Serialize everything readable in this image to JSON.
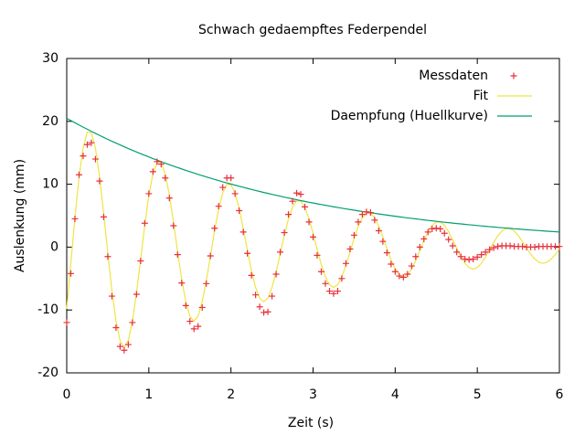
{
  "chart_data": {
    "type": "line",
    "title": "Schwach gedaempftes Federpendel",
    "xlabel": "Zeit (s)",
    "ylabel": "Auslenkung (mm)",
    "xlim": [
      0,
      6
    ],
    "ylim": [
      -20,
      30
    ],
    "xticks": [
      0,
      1,
      2,
      3,
      4,
      5,
      6
    ],
    "yticks": [
      -20,
      -10,
      0,
      10,
      20,
      30
    ],
    "legend": "top right",
    "x": [
      0,
      0.05,
      0.1,
      0.15,
      0.2,
      0.25,
      0.3,
      0.35,
      0.4,
      0.45,
      0.5,
      0.55,
      0.6,
      0.65,
      0.7,
      0.75,
      0.8,
      0.85,
      0.9,
      0.95,
      1,
      1.05,
      1.1,
      1.15,
      1.2,
      1.25,
      1.3,
      1.35,
      1.4,
      1.45,
      1.5,
      1.55,
      1.6,
      1.65,
      1.7,
      1.75,
      1.8,
      1.85,
      1.9,
      1.95,
      2,
      2.05,
      2.1,
      2.15,
      2.2,
      2.25,
      2.3,
      2.35,
      2.4,
      2.45,
      2.5,
      2.55,
      2.6,
      2.65,
      2.7,
      2.75,
      2.8,
      2.85,
      2.9,
      2.95,
      3,
      3.05,
      3.1,
      3.15,
      3.2,
      3.25,
      3.3,
      3.35,
      3.4,
      3.45,
      3.5,
      3.55,
      3.6,
      3.65,
      3.7,
      3.75,
      3.8,
      3.85,
      3.9,
      3.95,
      4,
      4.05,
      4.1,
      4.15,
      4.2,
      4.25,
      4.3,
      4.35,
      4.4,
      4.45,
      4.5,
      4.55,
      4.6,
      4.65,
      4.7,
      4.75,
      4.8,
      4.85,
      4.9,
      4.95,
      5,
      5.05,
      5.1,
      5.15,
      5.2,
      5.25,
      5.3,
      5.35,
      5.4,
      5.45,
      5.5,
      5.55,
      5.6,
      5.65,
      5.7,
      5.75,
      5.8,
      5.85,
      5.9,
      5.95,
      6
    ],
    "series": [
      {
        "name": "Messdaten",
        "style": "points",
        "color": "#e8303a",
        "values": [
          -12.0,
          -4.2,
          4.5,
          11.5,
          14.5,
          16.3,
          16.6,
          14.0,
          10.5,
          4.8,
          -1.5,
          -7.8,
          -12.8,
          -15.8,
          -16.4,
          -15.5,
          -12.0,
          -7.5,
          -2.2,
          3.8,
          8.5,
          12.0,
          13.6,
          13.2,
          11.0,
          7.8,
          3.4,
          -1.2,
          -5.7,
          -9.3,
          -11.8,
          -13.0,
          -12.6,
          -9.6,
          -5.8,
          -1.4,
          3.0,
          6.5,
          9.5,
          11.0,
          11.0,
          8.5,
          5.8,
          2.4,
          -1.0,
          -4.5,
          -7.6,
          -9.5,
          -10.4,
          -10.3,
          -7.8,
          -4.3,
          -0.8,
          2.3,
          5.2,
          7.3,
          8.6,
          8.4,
          6.4,
          4.0,
          1.6,
          -1.3,
          -3.9,
          -5.8,
          -7.0,
          -7.4,
          -7.0,
          -5.0,
          -2.6,
          -0.3,
          1.9,
          4.0,
          5.2,
          5.6,
          5.5,
          4.3,
          2.6,
          0.9,
          -0.9,
          -2.7,
          -3.9,
          -4.6,
          -4.8,
          -4.3,
          -3.0,
          -1.5,
          0.0,
          1.3,
          2.4,
          2.9,
          3.0,
          2.9,
          2.2,
          1.2,
          0.2,
          -0.8,
          -1.5,
          -1.9,
          -2.0,
          -1.9,
          -1.6,
          -1.2,
          -0.8,
          -0.4,
          -0.1,
          0.1,
          0.2,
          0.2,
          0.2,
          0.1,
          0.1,
          0.1,
          0.0,
          0.0,
          0.0,
          0.1,
          0.1,
          0.1,
          0.1,
          0.1,
          0.1
        ]
      },
      {
        "name": "Fit",
        "style": "lines",
        "color": "#f0e442",
        "values": [
          -9.82,
          -2.62,
          4.69,
          11.11,
          15.82,
          18.28,
          18.21,
          15.74,
          11.23,
          5.39,
          -0.93,
          -6.9,
          -11.76,
          -14.92,
          -15.95,
          -14.85,
          -11.78,
          -7.25,
          -1.93,
          3.46,
          8.2,
          11.68,
          13.49,
          13.44,
          11.62,
          8.29,
          3.98,
          -0.69,
          -5.09,
          -8.68,
          -11.01,
          -11.77,
          -10.96,
          -8.69,
          -5.35,
          -1.42,
          2.55,
          6.05,
          8.62,
          9.96,
          9.92,
          8.58,
          6.12,
          2.94,
          -0.51,
          -3.76,
          -6.41,
          -8.13,
          -8.69,
          -8.09,
          -6.41,
          -3.95,
          -1.05,
          1.88,
          4.47,
          6.36,
          7.35,
          7.32,
          6.33,
          4.52,
          2.17,
          -0.38,
          -2.77,
          -4.73,
          -6.0,
          -6.41,
          -5.97,
          -4.73,
          -2.92,
          -0.77,
          1.39,
          3.3,
          4.69,
          5.42,
          5.4,
          4.67,
          3.34,
          1.6,
          -0.28,
          -2.04,
          -3.49,
          -4.43,
          -4.73,
          -4.41,
          -3.49,
          -2.15,
          -0.57,
          1.03,
          2.44,
          3.46,
          4.0,
          3.99,
          3.45,
          2.46,
          1.18,
          -0.21,
          -1.51,
          -2.58,
          -3.27,
          -3.49,
          -3.25,
          -2.58,
          -1.59,
          -0.42,
          0.76,
          1.8,
          2.55,
          2.95,
          2.94,
          2.55,
          1.82,
          0.87,
          -0.15,
          -1.11,
          -1.9,
          -2.41,
          -2.58,
          -2.4,
          -1.9,
          -1.17,
          -0.31
        ]
      },
      {
        "name": "Daempfung (Huellkurve)",
        "style": "lines",
        "color": "#009e73",
        "values": [
          20.5,
          20.14,
          19.78,
          19.43,
          19.08,
          18.75,
          18.41,
          18.09,
          17.77,
          17.45,
          17.14,
          16.84,
          16.54,
          16.25,
          15.96,
          15.68,
          15.4,
          15.13,
          14.86,
          14.6,
          14.34,
          14.08,
          13.84,
          13.59,
          13.35,
          13.11,
          12.88,
          12.65,
          12.43,
          12.21,
          11.99,
          11.78,
          11.57,
          11.37,
          11.17,
          10.97,
          10.77,
          10.58,
          10.39,
          10.21,
          10.03,
          9.85,
          9.68,
          9.51,
          9.34,
          9.17,
          9.01,
          8.85,
          8.69,
          8.54,
          8.39,
          8.24,
          8.1,
          7.95,
          7.81,
          7.67,
          7.53,
          7.4,
          7.27,
          7.14,
          7.02,
          6.89,
          6.77,
          6.65,
          6.53,
          6.42,
          6.3,
          6.19,
          6.08,
          5.98,
          5.87,
          5.76,
          5.66,
          5.56,
          5.46,
          5.37,
          5.27,
          5.18,
          5.09,
          5.0,
          4.91,
          4.82,
          4.74,
          4.65,
          4.57,
          4.49,
          4.41,
          4.33,
          4.25,
          4.18,
          4.1,
          4.03,
          3.96,
          3.89,
          3.82,
          3.75,
          3.69,
          3.62,
          3.56,
          3.5,
          3.43,
          3.37,
          3.31,
          3.25,
          3.2,
          3.14,
          3.08,
          3.03,
          2.98,
          2.92,
          2.87,
          2.82,
          2.77,
          2.72,
          2.67,
          2.63,
          2.58,
          2.53,
          2.49,
          2.45,
          2.4
        ]
      }
    ]
  }
}
